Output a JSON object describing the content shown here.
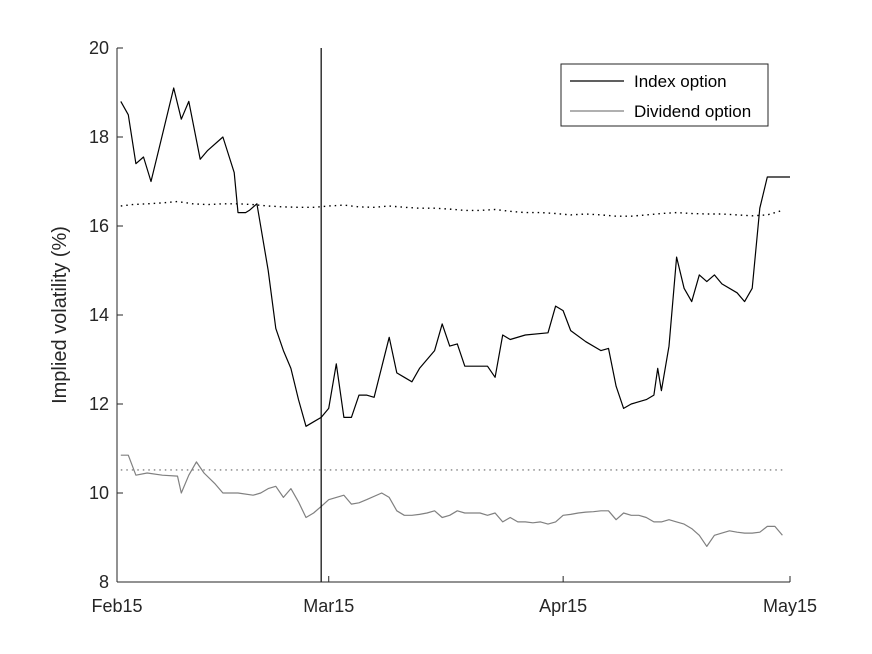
{
  "chart_data": {
    "type": "line",
    "xlabel": "",
    "ylabel": "Implied volatility (%)",
    "ylim": [
      8,
      20
    ],
    "yticks": [
      8,
      10,
      12,
      14,
      16,
      18,
      20
    ],
    "xlim": [
      0,
      89
    ],
    "xticks": [
      {
        "day": 0,
        "label": "Feb15"
      },
      {
        "day": 28,
        "label": "Mar15"
      },
      {
        "day": 59,
        "label": "Apr15"
      },
      {
        "day": 89,
        "label": "May15"
      }
    ],
    "vline_day": 27,
    "legend_position": "top-right",
    "series": [
      {
        "name": "Index option",
        "color": "#000000",
        "style": "solid",
        "x": [
          0.5,
          1.5,
          2.5,
          3.5,
          4.5,
          5.5,
          7.5,
          8.5,
          9.5,
          11,
          12,
          14,
          15.5,
          16,
          17,
          17.5,
          18.5,
          20,
          21,
          22,
          23,
          24,
          25,
          26,
          27,
          28,
          29,
          30,
          31,
          32,
          33,
          34,
          36,
          37,
          38,
          39,
          40,
          42,
          43,
          44,
          45,
          46,
          48,
          49,
          50,
          51,
          52,
          54,
          57,
          58,
          59,
          60,
          62,
          64,
          65,
          66,
          67,
          68,
          70,
          71,
          71.5,
          72,
          73,
          74,
          75,
          76,
          77,
          78,
          79,
          80,
          82,
          83,
          84,
          85,
          86,
          87,
          88,
          89
        ],
        "y": [
          18.8,
          18.5,
          17.4,
          17.55,
          17.0,
          17.7,
          19.1,
          18.4,
          18.8,
          17.5,
          17.7,
          18.0,
          17.2,
          16.3,
          16.3,
          16.35,
          16.5,
          15.0,
          13.7,
          13.2,
          12.8,
          12.1,
          11.5,
          11.6,
          11.7,
          11.9,
          12.9,
          11.7,
          11.7,
          12.2,
          12.2,
          12.15,
          13.5,
          12.7,
          12.6,
          12.5,
          12.8,
          13.2,
          13.8,
          13.3,
          13.35,
          12.85,
          12.85,
          12.85,
          12.6,
          13.55,
          13.45,
          13.55,
          13.6,
          14.2,
          14.1,
          13.65,
          13.4,
          13.2,
          13.25,
          12.4,
          11.9,
          12.0,
          12.1,
          12.2,
          12.8,
          12.3,
          13.3,
          15.3,
          14.6,
          14.3,
          14.9,
          14.75,
          14.9,
          14.7,
          14.5,
          14.3,
          14.6,
          16.4,
          17.1,
          17.1,
          17.1,
          17.1
        ]
      },
      {
        "name": "",
        "color": "#000000",
        "style": "dotted",
        "x": [
          0.5,
          2,
          4,
          6,
          8,
          10,
          12,
          14,
          16,
          18,
          20,
          22,
          24,
          26,
          28,
          30,
          32,
          34,
          36,
          38,
          40,
          42,
          44,
          46,
          48,
          50,
          52,
          54,
          56,
          58,
          60,
          62,
          64,
          66,
          68,
          70,
          72,
          74,
          76,
          78,
          80,
          82,
          84,
          86,
          88
        ],
        "y": [
          16.45,
          16.48,
          16.5,
          16.52,
          16.55,
          16.5,
          16.48,
          16.5,
          16.5,
          16.48,
          16.45,
          16.43,
          16.42,
          16.42,
          16.45,
          16.47,
          16.43,
          16.42,
          16.45,
          16.42,
          16.4,
          16.4,
          16.38,
          16.35,
          16.35,
          16.37,
          16.33,
          16.3,
          16.3,
          16.28,
          16.25,
          16.27,
          16.25,
          16.22,
          16.22,
          16.25,
          16.28,
          16.3,
          16.28,
          16.27,
          16.27,
          16.25,
          16.23,
          16.25,
          16.35
        ]
      },
      {
        "name": "Dividend option",
        "color": "#808080",
        "style": "solid",
        "x": [
          0.5,
          1.5,
          2.5,
          4,
          6,
          8,
          8.5,
          9.5,
          10.5,
          11.5,
          13,
          14,
          14.5,
          15,
          16,
          18,
          19,
          20,
          21,
          22,
          23,
          24,
          25,
          26,
          27,
          28,
          29,
          30,
          31,
          32,
          33,
          35,
          36,
          37,
          38,
          39,
          40,
          41,
          42,
          43,
          44,
          45,
          46,
          48,
          49,
          50,
          51,
          52,
          53,
          54,
          55,
          56,
          57,
          58,
          59,
          60,
          61,
          62,
          63,
          64,
          65,
          66,
          67,
          68,
          69,
          70,
          71,
          72,
          73,
          74,
          75,
          76,
          77,
          78,
          79,
          80,
          81,
          82,
          83,
          84,
          85,
          86,
          87,
          88
        ],
        "y": [
          10.85,
          10.85,
          10.4,
          10.45,
          10.4,
          10.38,
          10.0,
          10.4,
          10.7,
          10.45,
          10.2,
          10.0,
          10.0,
          10.0,
          10.0,
          9.95,
          10.0,
          10.1,
          10.15,
          9.9,
          10.1,
          9.8,
          9.45,
          9.55,
          9.7,
          9.85,
          9.9,
          9.95,
          9.75,
          9.78,
          9.85,
          10.0,
          9.9,
          9.6,
          9.5,
          9.5,
          9.52,
          9.55,
          9.6,
          9.45,
          9.5,
          9.6,
          9.55,
          9.55,
          9.5,
          9.55,
          9.35,
          9.45,
          9.35,
          9.35,
          9.33,
          9.35,
          9.3,
          9.35,
          9.5,
          9.52,
          9.55,
          9.57,
          9.58,
          9.6,
          9.6,
          9.4,
          9.55,
          9.5,
          9.5,
          9.45,
          9.35,
          9.35,
          9.4,
          9.35,
          9.3,
          9.2,
          9.05,
          8.8,
          9.05,
          9.1,
          9.15,
          9.12,
          9.1,
          9.1,
          9.12,
          9.25,
          9.25,
          9.05
        ]
      },
      {
        "name": "",
        "color": "#808080",
        "style": "dotted",
        "x": [
          0.5,
          88
        ],
        "y": [
          10.52,
          10.52
        ]
      }
    ]
  }
}
